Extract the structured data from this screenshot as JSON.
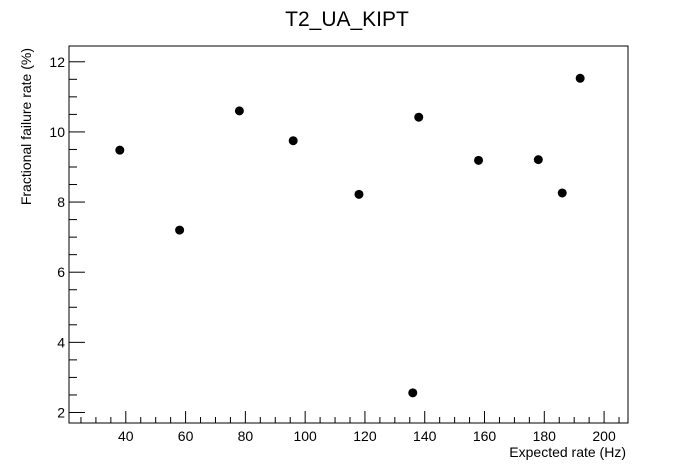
{
  "chart_data": {
    "type": "scatter",
    "title": "T2_UA_KIPT",
    "xlabel": "Expected rate (Hz)",
    "ylabel": "Fractional failure rate (%)",
    "xlim": [
      21,
      208
    ],
    "ylim": [
      1.7,
      12.45
    ],
    "x_ticks": [
      40,
      60,
      80,
      100,
      120,
      140,
      160,
      180,
      200
    ],
    "y_ticks": [
      2,
      4,
      6,
      8,
      10,
      12
    ],
    "x_minor_step": 5,
    "y_minor_step": 0.5,
    "grid": false,
    "legend": "none",
    "marker_color": "#000000",
    "points": [
      {
        "x": 38,
        "y": 9.48
      },
      {
        "x": 58,
        "y": 7.2
      },
      {
        "x": 78,
        "y": 10.6
      },
      {
        "x": 96,
        "y": 9.75
      },
      {
        "x": 118,
        "y": 8.22
      },
      {
        "x": 136,
        "y": 2.56
      },
      {
        "x": 138,
        "y": 10.42
      },
      {
        "x": 158,
        "y": 9.19
      },
      {
        "x": 178,
        "y": 9.21
      },
      {
        "x": 186,
        "y": 8.26
      },
      {
        "x": 192,
        "y": 11.53
      }
    ]
  }
}
